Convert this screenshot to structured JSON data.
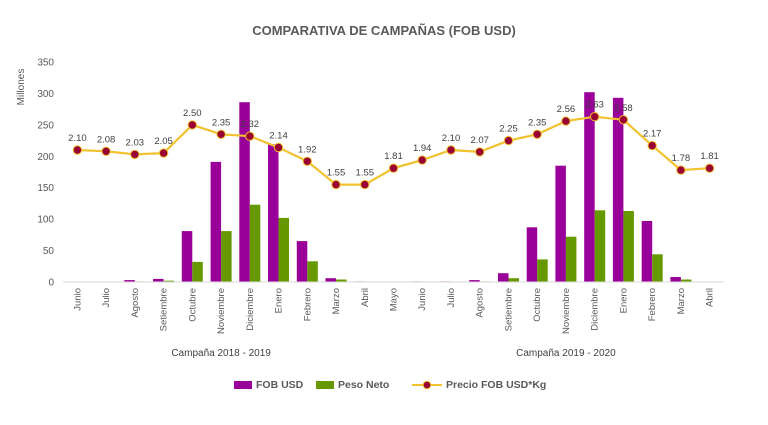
{
  "chart_data": {
    "type": "bar",
    "title": "COMPARATIVA DE CAMPAÑAS (FOB USD)",
    "ylabel": "Millones",
    "ylim": [
      0,
      350
    ],
    "yticks": [
      0,
      50,
      100,
      150,
      200,
      250,
      300,
      350
    ],
    "y2lim": [
      0,
      3.5
    ],
    "grid": false,
    "legend_position": "bottom",
    "categories": [
      "Junio",
      "Julio",
      "Agosto",
      "Setiembre",
      "Octubre",
      "Noviembre",
      "Diciembre",
      "Enero",
      "Febrero",
      "Marzo",
      "Abril",
      "Mayo",
      "Junio",
      "Julio",
      "Agosto",
      "Setiembre",
      "Octubre",
      "Noviembre",
      "Diciembre",
      "Enero",
      "Febrero",
      "Marzo",
      "Abril"
    ],
    "groups": [
      {
        "label": "Campaña 2018 - 2019",
        "start": 0,
        "end": 10
      },
      {
        "label": "Campaña 2019 - 2020",
        "start": 12,
        "end": 22
      }
    ],
    "series": [
      {
        "name": "FOB USD",
        "type": "bar",
        "color": "#990099",
        "values": [
          0,
          0,
          3,
          5,
          81,
          191,
          286,
          219,
          65,
          6,
          1,
          0,
          1,
          1,
          3,
          14,
          87,
          185,
          302,
          293,
          97,
          8,
          0
        ]
      },
      {
        "name": "Peso Neto",
        "type": "bar",
        "color": "#669900",
        "values": [
          0,
          0,
          1,
          2,
          32,
          81,
          123,
          102,
          33,
          4,
          0,
          0,
          0,
          0,
          1,
          6,
          36,
          72,
          114,
          113,
          44,
          4,
          0
        ]
      },
      {
        "name": "Precio FOB USD*Kg",
        "type": "line",
        "color": "#F2C12E",
        "marker_color": "#990033",
        "values": [
          2.1,
          2.08,
          2.03,
          2.05,
          2.5,
          2.35,
          2.32,
          2.14,
          1.92,
          1.55,
          1.55,
          1.81,
          1.94,
          2.1,
          2.07,
          2.25,
          2.35,
          2.56,
          2.63,
          2.58,
          2.17,
          1.78,
          1.81
        ],
        "labels": [
          "2.10",
          "2.08",
          "2.03",
          "2.05",
          "2.50",
          "2.35",
          "2.32",
          "2.14",
          "1.92",
          "1.55",
          "1.55",
          "1.81",
          "1.94",
          "2.10",
          "2.07",
          "2.25",
          "2.35",
          "2.56",
          "2.63",
          "2.58",
          "2.17",
          "1.78",
          "1.81"
        ]
      }
    ]
  }
}
